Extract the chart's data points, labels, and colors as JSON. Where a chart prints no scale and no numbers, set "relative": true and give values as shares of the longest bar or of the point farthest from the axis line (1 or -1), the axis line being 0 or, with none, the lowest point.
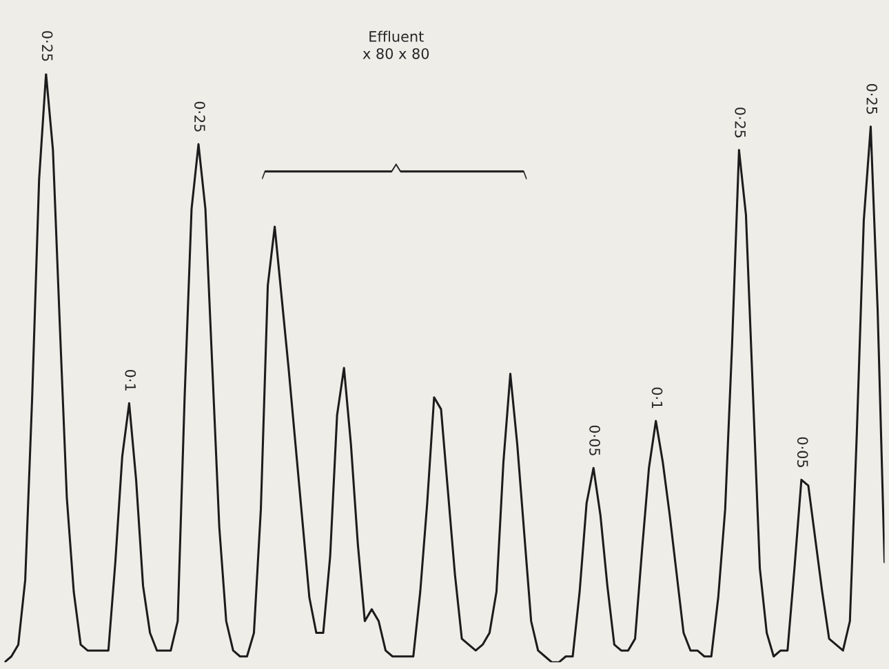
{
  "chart_data": {
    "type": "line",
    "relative": true,
    "grid": false,
    "legend": false,
    "categories": [
      null,
      null,
      null,
      null,
      null,
      null,
      null,
      null,
      null,
      null,
      null,
      null,
      null,
      null,
      null,
      null,
      null,
      null,
      null,
      null,
      null,
      null,
      null,
      null,
      null,
      null,
      null,
      null,
      null,
      null,
      null,
      null,
      null,
      null,
      null,
      null,
      null,
      null,
      null,
      null,
      null,
      null,
      null,
      null,
      null,
      null,
      null,
      null,
      null,
      null,
      null,
      null,
      null,
      null,
      null,
      null,
      null,
      null,
      null,
      null,
      null,
      null,
      null,
      null,
      null,
      null,
      null,
      null,
      null,
      null,
      null,
      null,
      null,
      null,
      null,
      null,
      null,
      null,
      null,
      null,
      null,
      null,
      null,
      null,
      null,
      null,
      null,
      null,
      null,
      null,
      null,
      null,
      null,
      null,
      null,
      null,
      null,
      null,
      null,
      null,
      null,
      null,
      null,
      null,
      null,
      null,
      null,
      null,
      null,
      null,
      null,
      null,
      null,
      null,
      null,
      null,
      null,
      null,
      null,
      null,
      null,
      null,
      null,
      null,
      null,
      null,
      null,
      null
    ],
    "series": [
      {
        "color": "#1c1c1c",
        "values": [
          0,
          0.01,
          0.03,
          0.14,
          0.45,
          0.82,
          1.0,
          0.87,
          0.57,
          0.28,
          0.12,
          0.03,
          0.02,
          0.02,
          0.02,
          0.02,
          0.17,
          0.35,
          0.44,
          0.31,
          0.13,
          0.05,
          0.02,
          0.02,
          0.02,
          0.07,
          0.45,
          0.77,
          0.88,
          0.77,
          0.5,
          0.23,
          0.07,
          0.02,
          0.01,
          0.01,
          0.05,
          0.26,
          0.64,
          0.74,
          0.62,
          0.5,
          0.37,
          0.24,
          0.11,
          0.05,
          0.05,
          0.18,
          0.42,
          0.5,
          0.37,
          0.2,
          0.07,
          0.09,
          0.07,
          0.02,
          0.01,
          0.01,
          0.01,
          0.01,
          0.12,
          0.27,
          0.45,
          0.43,
          0.29,
          0.15,
          0.04,
          0.03,
          0.02,
          0.03,
          0.05,
          0.12,
          0.34,
          0.49,
          0.37,
          0.22,
          0.07,
          0.02,
          0.01,
          0.0,
          0.0,
          0.01,
          0.01,
          0.12,
          0.27,
          0.33,
          0.25,
          0.13,
          0.03,
          0.02,
          0.02,
          0.04,
          0.19,
          0.33,
          0.41,
          0.34,
          0.25,
          0.15,
          0.05,
          0.02,
          0.02,
          0.01,
          0.01,
          0.11,
          0.26,
          0.54,
          0.87,
          0.76,
          0.46,
          0.16,
          0.05,
          0.01,
          0.02,
          0.02,
          0.16,
          0.31,
          0.3,
          0.21,
          0.12,
          0.04,
          0.03,
          0.02,
          0.07,
          0.39,
          0.75,
          0.91,
          0.6,
          0.17
        ]
      }
    ],
    "annotations": [
      "Effluent\nx 80 x 80",
      {
        "text": "0·25",
        "y": 1.0
      },
      {
        "text": "0·1",
        "y": 0.44
      },
      {
        "text": "0·25",
        "y": 0.88
      },
      {
        "text": "0·05",
        "y": 0.33
      },
      {
        "text": "0·1",
        "y": 0.41
      },
      {
        "text": "0·25",
        "y": 0.87
      },
      {
        "text": "0·05",
        "y": 0.31
      },
      {
        "text": "0·25",
        "y": 0.91
      }
    ]
  }
}
